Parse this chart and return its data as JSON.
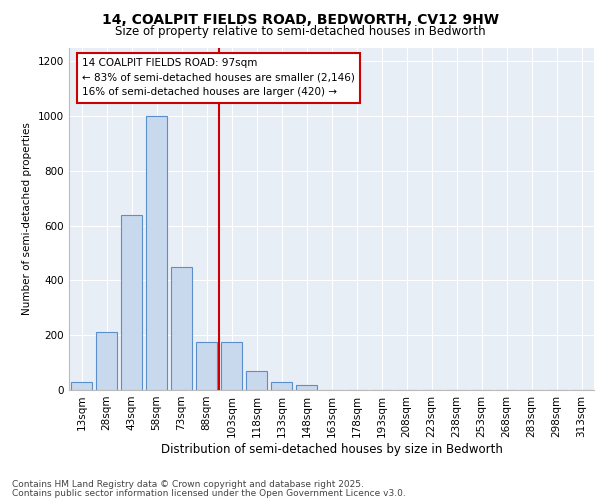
{
  "title1": "14, COALPIT FIELDS ROAD, BEDWORTH, CV12 9HW",
  "title2": "Size of property relative to semi-detached houses in Bedworth",
  "xlabel": "Distribution of semi-detached houses by size in Bedworth",
  "ylabel": "Number of semi-detached properties",
  "bin_labels": [
    "13sqm",
    "28sqm",
    "43sqm",
    "58sqm",
    "73sqm",
    "88sqm",
    "103sqm",
    "118sqm",
    "133sqm",
    "148sqm",
    "163sqm",
    "178sqm",
    "193sqm",
    "208sqm",
    "223sqm",
    "238sqm",
    "253sqm",
    "268sqm",
    "283sqm",
    "298sqm",
    "313sqm"
  ],
  "bar_values": [
    30,
    210,
    640,
    1000,
    450,
    175,
    175,
    70,
    30,
    20,
    0,
    0,
    0,
    0,
    0,
    0,
    0,
    0,
    0,
    0,
    0
  ],
  "bar_color": "#c9d9ed",
  "bar_edge_color": "#5b8fc9",
  "vline_x": 5.5,
  "annotation_title": "14 COALPIT FIELDS ROAD: 97sqm",
  "annotation_line1": "← 83% of semi-detached houses are smaller (2,146)",
  "annotation_line2": "16% of semi-detached houses are larger (420) →",
  "annotation_box_color": "#ffffff",
  "annotation_box_edge": "#cc0000",
  "vline_color": "#cc0000",
  "ylim": [
    0,
    1250
  ],
  "yticks": [
    0,
    200,
    400,
    600,
    800,
    1000,
    1200
  ],
  "background_color": "#e8eef5",
  "footer1": "Contains HM Land Registry data © Crown copyright and database right 2025.",
  "footer2": "Contains public sector information licensed under the Open Government Licence v3.0.",
  "title1_fontsize": 10,
  "title2_fontsize": 8.5,
  "ylabel_fontsize": 7.5,
  "xlabel_fontsize": 8.5,
  "tick_fontsize": 7.5,
  "annotation_fontsize": 7.5,
  "footer_fontsize": 6.5
}
